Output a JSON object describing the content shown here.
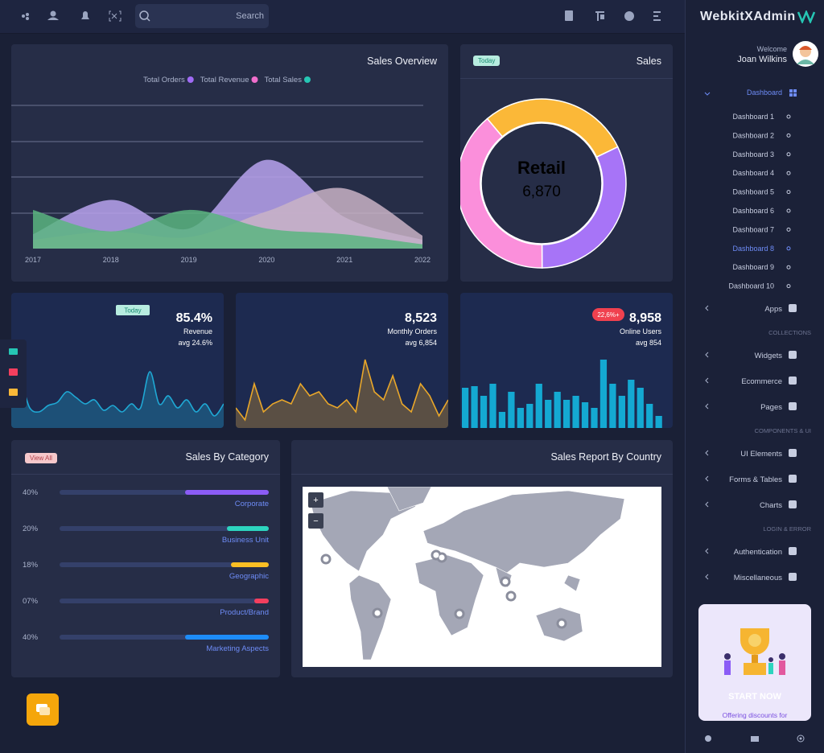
{
  "topbar": {
    "search_placeholder": "Search"
  },
  "sidebar": {
    "brand": "WebkitXAdmin",
    "welcome": "Welcome",
    "user_name": "Joan Wilkins",
    "dashboard": "Dashboard",
    "dashboards": [
      {
        "label": "Dashboard 1"
      },
      {
        "label": "Dashboard 2"
      },
      {
        "label": "Dashboard 3"
      },
      {
        "label": "Dashboard 4"
      },
      {
        "label": "Dashboard 5"
      },
      {
        "label": "Dashboard 6"
      },
      {
        "label": "Dashboard 7"
      },
      {
        "label": "Dashboard 8",
        "active": true
      },
      {
        "label": "Dashboard 9"
      },
      {
        "label": "Dashboard 10"
      }
    ],
    "nav": [
      {
        "label": "Apps"
      },
      {
        "heading": "COLLECTIONS"
      },
      {
        "label": "Widgets"
      },
      {
        "label": "Ecommerce"
      },
      {
        "label": "Pages"
      },
      {
        "heading": "COMPONENTS & UI"
      },
      {
        "label": "UI Elements"
      },
      {
        "label": "Forms & Tables"
      },
      {
        "label": "Charts"
      },
      {
        "heading": "LOGIN & ERROR"
      },
      {
        "label": "Authentication"
      },
      {
        "label": "Miscellaneous"
      }
    ],
    "promo": {
      "cta": "START NOW",
      "text": "Offering discounts for"
    }
  },
  "chart_data": [
    {
      "type": "area",
      "title": "Sales Overview",
      "categories": [
        "2017",
        "2018",
        "2019",
        "2020",
        "2021",
        "2022"
      ],
      "ylim": [
        0,
        100
      ],
      "series": [
        {
          "name": "Total Orders",
          "color": "#a06bf5",
          "fill": "#b9a3ee",
          "values": [
            10,
            34,
            14,
            62,
            22,
            6
          ]
        },
        {
          "name": "Total Revenue",
          "color": "#f06ecc",
          "fill": "#c9b3c6",
          "values": [
            6,
            12,
            8,
            26,
            42,
            9
          ]
        },
        {
          "name": "Total Sales",
          "color": "#26c6b4",
          "fill": "#5bb580",
          "values": [
            27,
            12,
            27,
            14,
            10,
            3
          ]
        }
      ]
    },
    {
      "type": "donut",
      "title": "Sales",
      "badge": "Today",
      "center_label": "Retail",
      "center_value": "6,870",
      "start_angle": -40,
      "categories": [
        null,
        null,
        null
      ],
      "values": [
        29,
        32,
        39
      ],
      "colors": [
        "#fbb838",
        "#a774f7",
        "#fb8fdb"
      ]
    },
    {
      "type": "line",
      "badge": "Today",
      "headline": "85.4%",
      "label": "Revenue",
      "sub": "avg 24.6%",
      "color": "#1fa8d4",
      "ylim": [
        0,
        100
      ],
      "values": [
        30,
        55,
        25,
        20,
        28,
        32,
        45,
        38,
        30,
        35,
        22,
        28,
        20,
        30,
        25,
        70,
        30,
        40,
        25,
        35,
        20,
        30,
        15,
        30
      ]
    },
    {
      "type": "line",
      "headline": "8,523",
      "label": "Monthly Orders",
      "sub": "avg 6,854",
      "color": "#e9a72a",
      "ylim": [
        0,
        100
      ],
      "values": [
        25,
        10,
        55,
        20,
        30,
        35,
        30,
        55,
        40,
        45,
        30,
        25,
        35,
        20,
        85,
        45,
        35,
        65,
        30,
        20,
        55,
        40,
        15,
        35
      ]
    },
    {
      "type": "bar",
      "badge": "22,6%+",
      "headline": "8,958",
      "label": "Online Users",
      "sub": "avg 854",
      "color": "#14a9d2",
      "ylim": [
        0,
        100
      ],
      "values": [
        50,
        52,
        40,
        55,
        20,
        45,
        25,
        30,
        55,
        35,
        45,
        35,
        40,
        32,
        25,
        85,
        55,
        40,
        60,
        50,
        30,
        15
      ]
    }
  ],
  "sales_by_category": {
    "title": "Sales By Category",
    "button": "View All",
    "xlim": [
      0,
      100
    ],
    "rows": [
      {
        "label": "40%",
        "value": 40,
        "name": "Corporate",
        "color": "#8b5cf6"
      },
      {
        "label": "20%",
        "value": 20,
        "name": "Business Unit",
        "color": "#2dd4bf"
      },
      {
        "label": "18%",
        "value": 18,
        "name": "Geographic",
        "color": "#fbbf24"
      },
      {
        "label": "07%",
        "value": 7,
        "name": "Product/Brand",
        "color": "#f43f5e"
      },
      {
        "label": "40%",
        "value": 40,
        "name": "Marketing Aspects",
        "color": "#1d8cf8"
      }
    ]
  },
  "map": {
    "title": "Sales Report By Country",
    "zoom_in": "+",
    "zoom_out": "−"
  }
}
